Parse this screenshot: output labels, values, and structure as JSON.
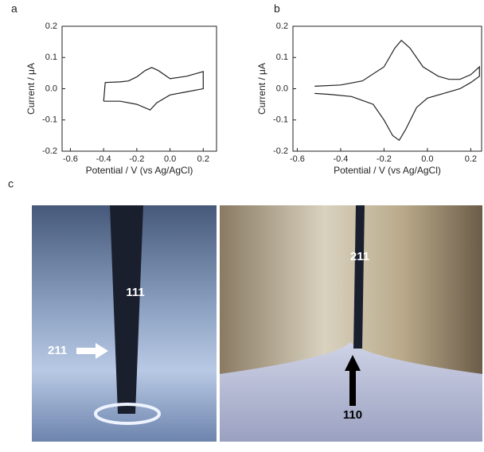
{
  "panels": [
    "a",
    "b",
    "c"
  ],
  "photo_labels": {
    "left_top": "111",
    "left_arrow": "211",
    "right_top": "211",
    "right_arrow": "110"
  },
  "chart_data": [
    {
      "type": "line",
      "xlabel": "Potential / V (vs Ag/AgCl)",
      "ylabel": "Current / μA",
      "color": "#222222",
      "x": [
        -0.4,
        -0.39,
        -0.3,
        -0.25,
        -0.2,
        -0.15,
        -0.11,
        -0.07,
        0.0,
        0.1,
        0.2,
        0.2,
        0.1,
        0.0,
        -0.08,
        -0.12,
        -0.2,
        -0.3,
        -0.4,
        -0.4
      ],
      "values": [
        -0.04,
        0.02,
        0.022,
        0.025,
        0.038,
        0.058,
        0.068,
        0.058,
        0.032,
        0.04,
        0.055,
        0.0,
        -0.01,
        -0.02,
        -0.045,
        -0.068,
        -0.05,
        -0.04,
        -0.04,
        -0.04
      ],
      "xlim": [
        -0.65,
        0.28
      ],
      "ylim": [
        -0.2,
        0.2
      ],
      "xticks": [
        -0.6,
        -0.4,
        -0.2,
        {
          "value": 0,
          "label": "0.0"
        },
        0.2
      ],
      "yticks": [
        -0.2,
        -0.1,
        {
          "value": 0,
          "label": "0.0"
        },
        0.1,
        0.2
      ]
    },
    {
      "type": "line",
      "xlabel": "Potential / V (vs Ag/AgCl)",
      "ylabel": "Current / μA",
      "color": "#222222",
      "x": [
        -0.52,
        -0.4,
        -0.3,
        -0.2,
        -0.15,
        -0.12,
        -0.08,
        -0.02,
        0.05,
        0.1,
        0.15,
        0.2,
        0.24,
        0.24,
        0.2,
        0.15,
        0.1,
        0.0,
        -0.05,
        -0.1,
        -0.13,
        -0.16,
        -0.2,
        -0.25,
        -0.35,
        -0.45,
        -0.52
      ],
      "values": [
        0.008,
        0.012,
        0.025,
        0.07,
        0.13,
        0.155,
        0.13,
        0.07,
        0.04,
        0.03,
        0.03,
        0.045,
        0.07,
        0.04,
        0.02,
        0.0,
        -0.01,
        -0.03,
        -0.06,
        -0.13,
        -0.165,
        -0.15,
        -0.1,
        -0.05,
        -0.025,
        -0.018,
        -0.015
      ],
      "xlim": [
        -0.62,
        0.25
      ],
      "ylim": [
        -0.2,
        0.2
      ],
      "xticks": [
        -0.6,
        -0.4,
        -0.2,
        {
          "value": 0,
          "label": "0.0"
        },
        0.2
      ],
      "yticks": [
        -0.2,
        -0.1,
        {
          "value": 0,
          "label": "0.0"
        },
        0.1,
        0.2
      ]
    }
  ]
}
